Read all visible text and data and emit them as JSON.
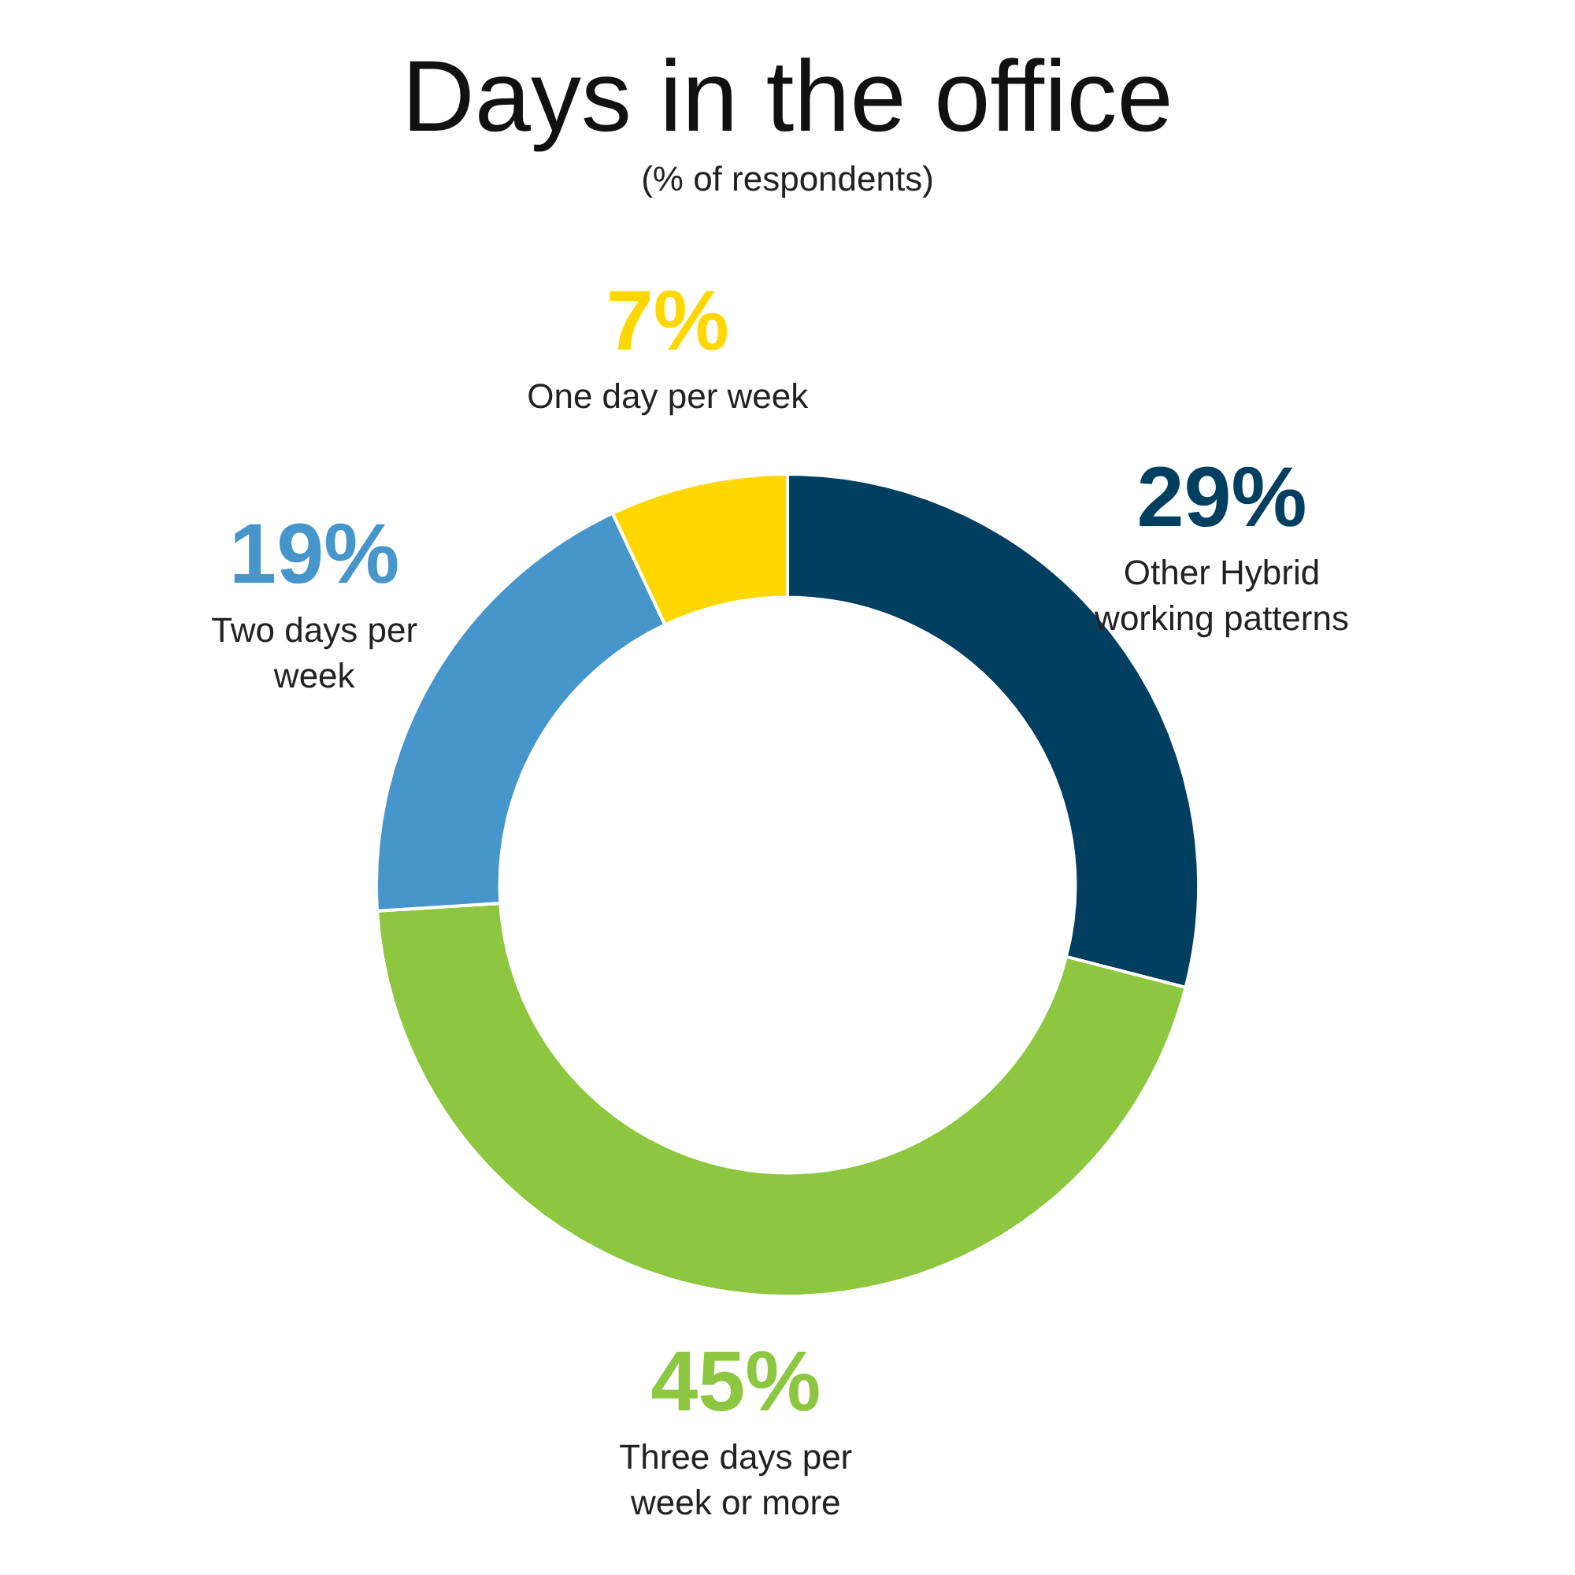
{
  "chart_data": {
    "type": "donut",
    "title": "Days in the office",
    "subtitle": "(% of respondents)",
    "categories": [
      "Other Hybrid working patterns",
      "Three days per week or more",
      "Two days per week",
      "One day per week"
    ],
    "values": [
      29,
      45,
      19,
      7
    ],
    "colors": [
      "#003f5f",
      "#8dc63f",
      "#4696cc",
      "#ffd700"
    ],
    "value_labels": [
      "29%",
      "45%",
      "19%",
      "7%"
    ],
    "legend": false
  }
}
